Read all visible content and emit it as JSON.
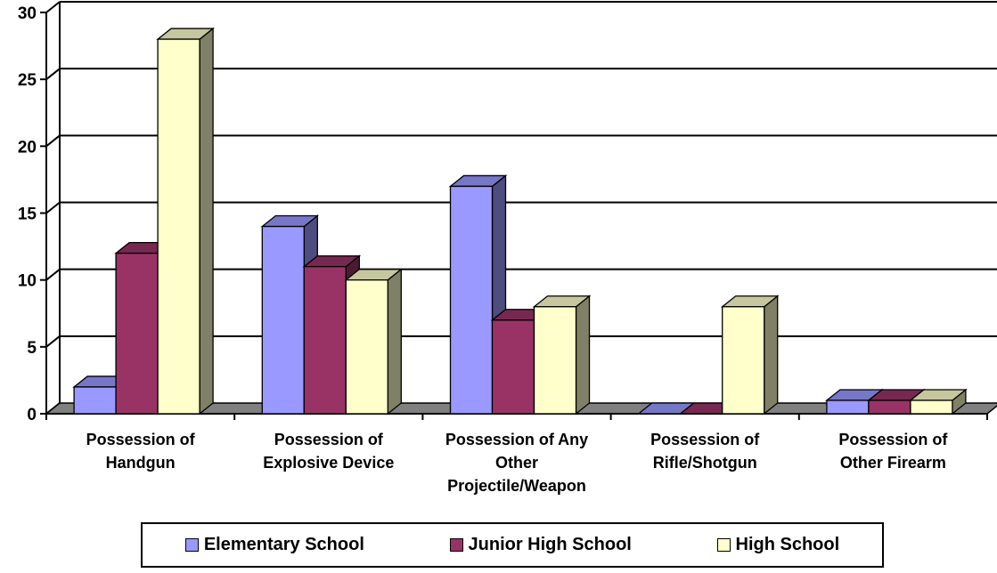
{
  "chart_data": {
    "type": "bar",
    "title": "",
    "xlabel": "",
    "ylabel": "",
    "ylim": [
      0,
      30
    ],
    "yticks": [
      0,
      5,
      10,
      15,
      20,
      25,
      30
    ],
    "grid": true,
    "three_d": true,
    "legend_position": "bottom",
    "categories": [
      [
        "Possession of",
        "Handgun"
      ],
      [
        "Possession of",
        "Explosive Device"
      ],
      [
        "Possession of Any",
        "Other",
        "Projectile/Weapon"
      ],
      [
        "Possession of",
        "Rifle/Shotgun"
      ],
      [
        "Possession of",
        "Other Firearm"
      ]
    ],
    "series": [
      {
        "name": "Elementary School",
        "color": "#9999ff",
        "values": [
          2,
          14,
          17,
          0,
          1
        ]
      },
      {
        "name": "Junior High School",
        "color": "#993366",
        "values": [
          12,
          11,
          7,
          0,
          1
        ]
      },
      {
        "name": "High School",
        "color": "#ffffcc",
        "values": [
          28,
          10,
          8,
          8,
          1
        ]
      }
    ]
  }
}
